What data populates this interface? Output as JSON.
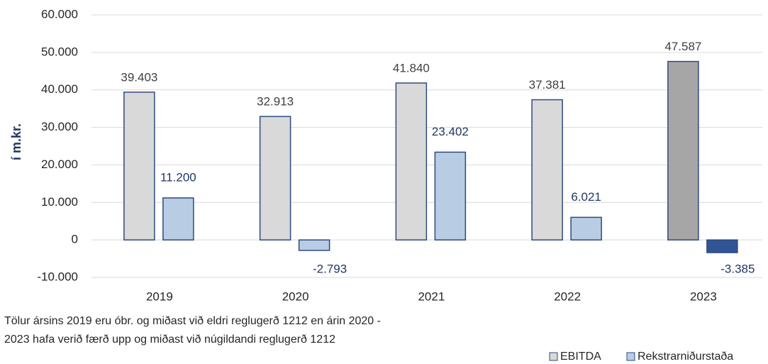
{
  "chart_data": {
    "type": "bar",
    "y_label": "í m.kr.",
    "note": [
      "Tölur ársins 2019 eru óbr. og miðast við eldri reglugerð 1212 en árin 2020 -",
      "2023 hafa verið færð upp og miðast við núgildandi reglugerð 1212"
    ],
    "categories": [
      "2019",
      "2020",
      "2021",
      "2022",
      "2023"
    ],
    "series": [
      {
        "name": "EBITDA",
        "color": "#d9d9d9",
        "colors": [
          "#d9d9d9",
          "#d9d9d9",
          "#d9d9d9",
          "#d9d9d9",
          "#a6a6a6"
        ],
        "label_color": "#404040",
        "values": [
          39403,
          32913,
          41840,
          37381,
          47587
        ],
        "value_labels": [
          "39.403",
          "32.913",
          "41.840",
          "37.381",
          "47.587"
        ]
      },
      {
        "name": "Rekstrarniðurstaða",
        "color": "#b8cce4",
        "colors": [
          "#b8cce4",
          "#b8cce4",
          "#b8cce4",
          "#b8cce4",
          "#2f5597"
        ],
        "label_color": "#1f3864",
        "values": [
          11200,
          -2793,
          23402,
          6021,
          -3385
        ],
        "value_labels": [
          "11.200",
          "-2.793",
          "23.402",
          "6.021",
          "-3.385"
        ]
      }
    ],
    "ylim": [
      -10000,
      60000
    ],
    "yticks": [
      {
        "value": -10000,
        "label": "-10.000"
      },
      0,
      {
        "value": 10000,
        "label": "10.000"
      },
      {
        "value": 20000,
        "label": "20.000"
      },
      {
        "value": 30000,
        "label": "30.000"
      },
      {
        "value": 40000,
        "label": "40.000"
      },
      {
        "value": 50000,
        "label": "50.000"
      },
      {
        "value": 60000,
        "label": "60.000"
      }
    ],
    "grid": true,
    "legend": "bottom-right"
  }
}
